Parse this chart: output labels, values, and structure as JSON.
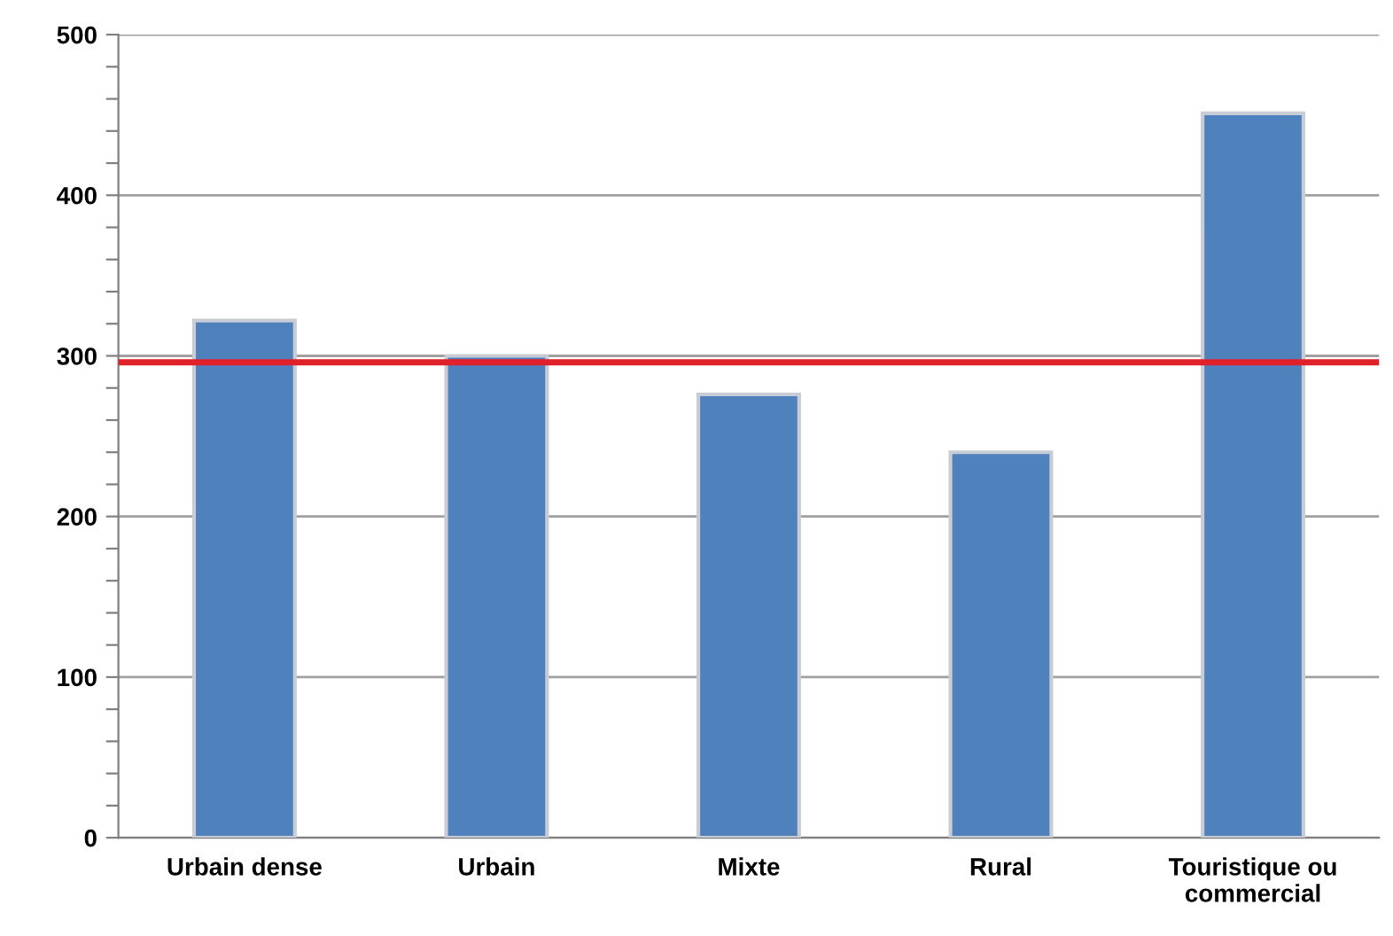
{
  "chart_data": {
    "type": "bar",
    "categories": [
      "Urbain dense",
      "Urbain",
      "Mixte",
      "Rural",
      "Touristique ou\ncommercial"
    ],
    "values": [
      322,
      300,
      276,
      240,
      451
    ],
    "color": "#4f81bd",
    "ylim": [
      0,
      500
    ],
    "yticks": [
      0,
      {
        "value": 20,
        "label": null
      },
      {
        "value": 40,
        "label": null
      },
      {
        "value": 60,
        "label": null
      },
      {
        "value": 80,
        "label": null
      },
      100,
      {
        "value": 120,
        "label": null
      },
      {
        "value": 140,
        "label": null
      },
      {
        "value": 160,
        "label": null
      },
      {
        "value": 180,
        "label": null
      },
      200,
      {
        "value": 220,
        "label": null
      },
      {
        "value": 240,
        "label": null
      },
      {
        "value": 260,
        "label": null
      },
      {
        "value": 280,
        "label": null
      },
      300,
      {
        "value": 320,
        "label": null
      },
      {
        "value": 340,
        "label": null
      },
      {
        "value": 360,
        "label": null
      },
      {
        "value": 380,
        "label": null
      },
      400,
      {
        "value": 420,
        "label": null
      },
      {
        "value": 440,
        "label": null
      },
      {
        "value": 460,
        "label": null
      },
      {
        "value": 480,
        "label": null
      },
      500
    ],
    "grid": "y",
    "ref_lines": [
      {
        "axis": "y",
        "value": 296,
        "color": "#e0202a"
      }
    ]
  }
}
